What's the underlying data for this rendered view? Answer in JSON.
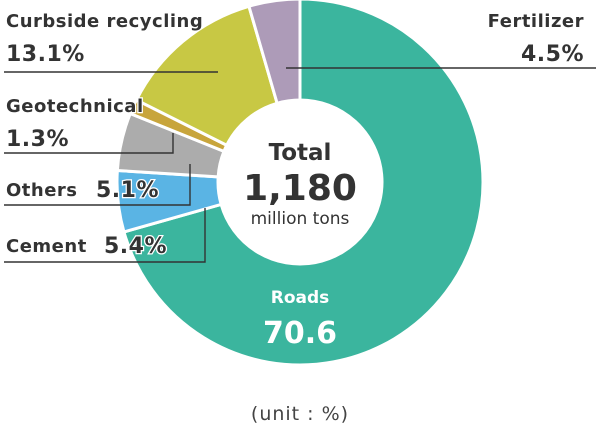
{
  "chart_data": {
    "type": "pie",
    "variant": "donut",
    "center": {
      "title": "Total",
      "value": "1,180",
      "unit": "million tons"
    },
    "unit_note": "(unit : %)",
    "slices": [
      {
        "name": "Roads",
        "value": 70.6,
        "display": "70.6",
        "color": "#3bb59e"
      },
      {
        "name": "Cement",
        "value": 5.4,
        "display": "5.4%",
        "color": "#5ab4e4"
      },
      {
        "name": "Others",
        "value": 5.1,
        "display": "5.1%",
        "color": "#acacac"
      },
      {
        "name": "Geotechnical",
        "value": 1.3,
        "display": "1.3%",
        "color": "#c8a53c"
      },
      {
        "name": "Curbside recycling",
        "value": 13.1,
        "display": "13.1%",
        "color": "#c8c844"
      },
      {
        "name": "Fertilizer",
        "value": 4.5,
        "display": "4.5%",
        "color": "#ad9bb8"
      }
    ]
  }
}
